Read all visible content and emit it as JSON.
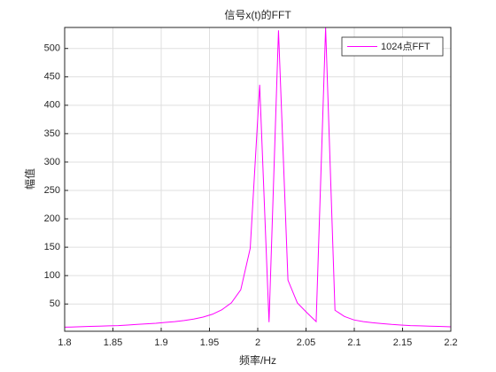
{
  "chart_data": {
    "type": "line",
    "title": "信号x(t)的FFT",
    "x_label": "频率/Hz",
    "y_label": "幅值",
    "x": [
      1.7969,
      1.8066,
      1.8164,
      1.8262,
      1.8359,
      1.8457,
      1.8555,
      1.8652,
      1.875,
      1.8848,
      1.8945,
      1.9043,
      1.9141,
      1.9238,
      1.9336,
      1.9434,
      1.9531,
      1.9629,
      1.9727,
      1.9824,
      1.9922,
      2.002,
      2.0117,
      2.0215,
      2.0313,
      2.041,
      2.0508,
      2.0605,
      2.0703,
      2.08,
      2.0898,
      2.0996,
      2.1094,
      2.1191,
      2.1289,
      2.1387,
      2.1484,
      2.1582,
      2.168,
      2.1777,
      2.1875,
      2.1973,
      2.207
    ],
    "series": [
      {
        "name": "1024点FFT",
        "color": "#ff00ff",
        "values": [
          9,
          9.5,
          10,
          10.5,
          11,
          11.5,
          12,
          13,
          14,
          15,
          16,
          17.5,
          19,
          21,
          23.5,
          27,
          32,
          40,
          52,
          75,
          148,
          436,
          18,
          532,
          92,
          52,
          35,
          19,
          537,
          39,
          28,
          22,
          19,
          17,
          15.5,
          14,
          13,
          12,
          11.5,
          11,
          10.5,
          10,
          9.5
        ]
      }
    ],
    "xlim": [
      1.8,
      2.2
    ],
    "xticks": [
      1.8,
      1.85,
      1.9,
      1.95,
      2,
      2.05,
      2.1,
      2.15,
      2.2
    ],
    "ylim": [
      2,
      537
    ],
    "yticks": [
      50,
      100,
      150,
      200,
      250,
      300,
      350,
      400,
      450,
      500
    ],
    "grid": true,
    "legend": "upper right"
  }
}
